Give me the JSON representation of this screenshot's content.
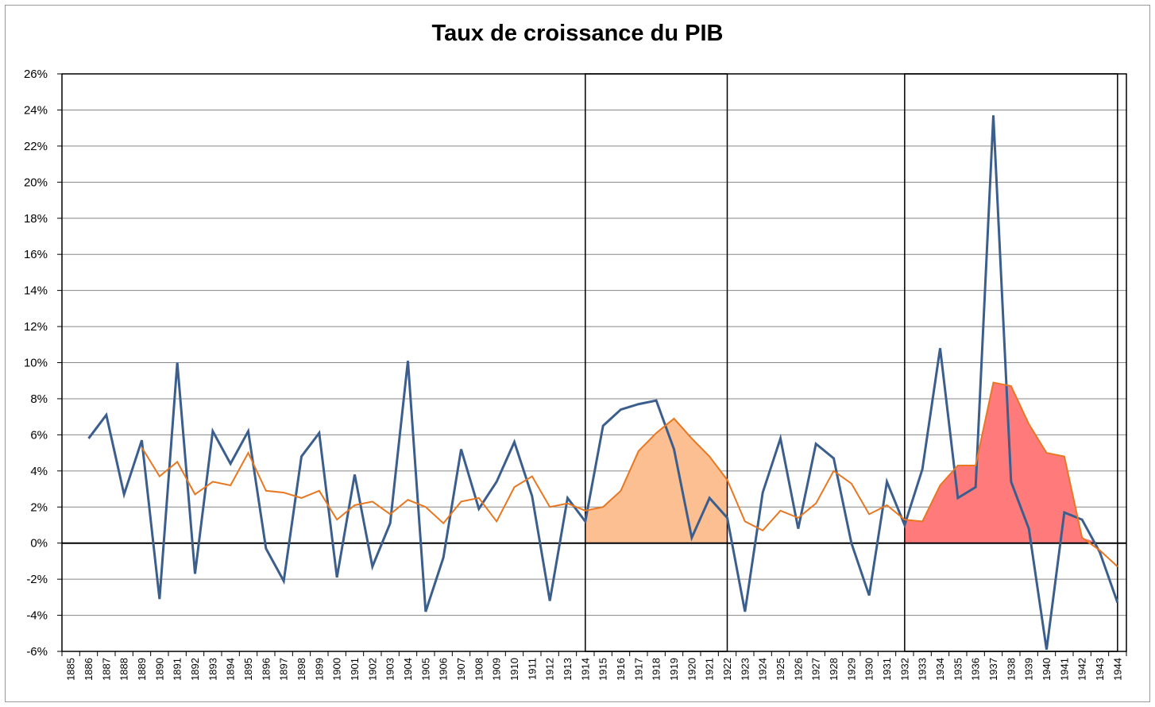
{
  "chart_data": {
    "type": "line",
    "title": "Taux de croissance du PIB",
    "xlabel": "",
    "ylabel": "",
    "ylim": [
      -6,
      26
    ],
    "y_ticks": [
      "26%",
      "24%",
      "22%",
      "20%",
      "18%",
      "16%",
      "14%",
      "12%",
      "10%",
      "8%",
      "6%",
      "4%",
      "2%",
      "0%",
      "-2%",
      "-4%",
      "-6%"
    ],
    "categories": [
      "1885",
      "1886",
      "1887",
      "1888",
      "1889",
      "1890",
      "1891",
      "1892",
      "1893",
      "1894",
      "1895",
      "1896",
      "1897",
      "1898",
      "1899",
      "1900",
      "1901",
      "1902",
      "1903",
      "1904",
      "1905",
      "1906",
      "1907",
      "1908",
      "1909",
      "1910",
      "1911",
      "1912",
      "1913",
      "1914",
      "1915",
      "1916",
      "1917",
      "1918",
      "1919",
      "1920",
      "1921",
      "1922",
      "1923",
      "1924",
      "1925",
      "1926",
      "1927",
      "1928",
      "1929",
      "1930",
      "1931",
      "1932",
      "1933",
      "1934",
      "1935",
      "1936",
      "1937",
      "1938",
      "1939",
      "1940",
      "1941",
      "1942",
      "1943",
      "1944"
    ],
    "grid": true,
    "legend": "none",
    "series": [
      {
        "color": "#3b5e8c",
        "values": [
          null,
          5.8,
          7.1,
          2.7,
          5.7,
          -3.1,
          10.0,
          -1.7,
          6.2,
          4.4,
          6.2,
          -0.3,
          -2.1,
          4.8,
          6.1,
          -1.9,
          3.8,
          -1.3,
          1.1,
          10.1,
          -3.8,
          -0.8,
          5.2,
          1.9,
          3.4,
          5.6,
          2.6,
          -3.2,
          2.5,
          1.2,
          6.5,
          7.4,
          7.7,
          7.9,
          5.2,
          0.3,
          2.5,
          1.4,
          -3.8,
          2.8,
          5.8,
          0.8,
          5.5,
          4.7,
          0.0,
          -2.9,
          3.4,
          1.0,
          4.1,
          10.8,
          2.5,
          3.1,
          23.7,
          3.4,
          0.8,
          -5.9,
          1.7,
          1.3,
          -0.5,
          -3.3
        ]
      },
      {
        "color": "#e87722",
        "values": [
          null,
          null,
          null,
          null,
          5.3,
          3.7,
          4.5,
          2.7,
          3.4,
          3.2,
          5.0,
          2.9,
          2.8,
          2.5,
          2.9,
          1.3,
          2.1,
          2.3,
          1.6,
          2.4,
          2.0,
          1.1,
          2.3,
          2.5,
          1.2,
          3.1,
          3.7,
          2.0,
          2.2,
          1.8,
          2.0,
          2.9,
          5.1,
          6.1,
          6.9,
          5.8,
          4.8,
          3.5,
          1.2,
          0.7,
          1.8,
          1.4,
          2.2,
          4.0,
          3.3,
          1.6,
          2.1,
          1.3,
          1.2,
          3.2,
          4.3,
          4.3,
          8.9,
          8.7,
          6.6,
          5.0,
          4.8,
          0.3,
          -0.4,
          -1.3
        ]
      }
    ],
    "highlighted_periods": [
      {
        "start": "1914",
        "end": "1922",
        "fill": "#fbbf91"
      },
      {
        "start": "1932",
        "end": "1944",
        "fill": "#ff7b7b"
      }
    ]
  }
}
